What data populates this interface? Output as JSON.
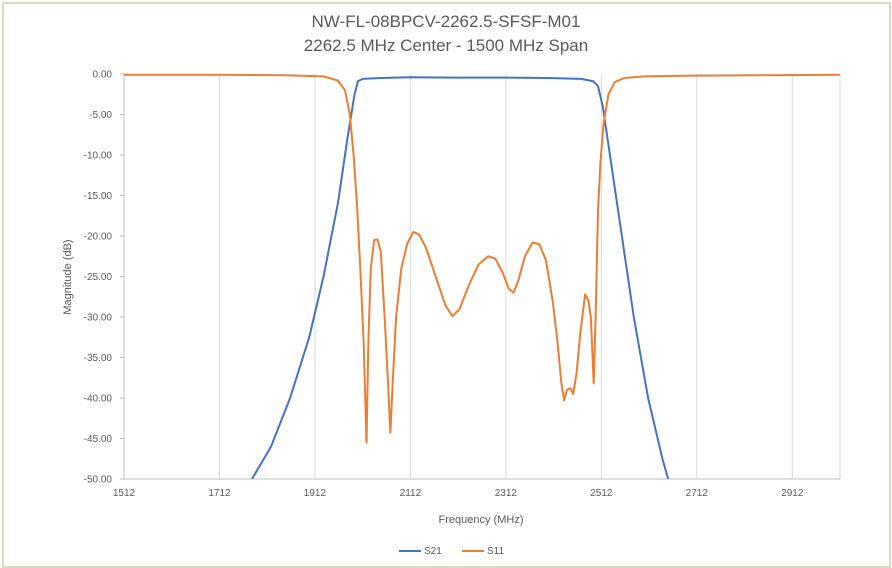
{
  "chart_data": {
    "type": "line",
    "title": "NW-FL-08BPCV-2262.5-SFSF-M01",
    "subtitle": "2262.5 MHz Center - 1500 MHz Span",
    "xlabel": "Frequency (MHz)",
    "ylabel": "Magnitude (dB)",
    "xlim": [
      1512,
      3012
    ],
    "ylim": [
      -50,
      0
    ],
    "x_ticks": [
      "1512",
      "1712",
      "1912",
      "2112",
      "2312",
      "2512",
      "2712",
      "2912"
    ],
    "x_tick_values": [
      1512,
      1712,
      1912,
      2112,
      2312,
      2512,
      2712,
      2912
    ],
    "y_ticks": [
      "0.00",
      "-5.00",
      "-10.00",
      "-15.00",
      "-20.00",
      "-25.00",
      "-30.00",
      "-35.00",
      "-40.00",
      "-45.00",
      "-50.00"
    ],
    "y_tick_values": [
      0,
      -5,
      -10,
      -15,
      -20,
      -25,
      -30,
      -35,
      -40,
      -45,
      -50
    ],
    "grid": "vertical",
    "legend_position": "bottom",
    "series": [
      {
        "name": "S21",
        "color": "#4472c4",
        "points": [
          [
            1780,
            -50
          ],
          [
            1820,
            -46
          ],
          [
            1860,
            -40
          ],
          [
            1900,
            -32.5
          ],
          [
            1930,
            -25
          ],
          [
            1960,
            -16
          ],
          [
            1980,
            -8
          ],
          [
            1995,
            -2.5
          ],
          [
            2002,
            -0.9
          ],
          [
            2012,
            -0.6
          ],
          [
            2050,
            -0.5
          ],
          [
            2112,
            -0.4
          ],
          [
            2200,
            -0.45
          ],
          [
            2312,
            -0.45
          ],
          [
            2400,
            -0.5
          ],
          [
            2470,
            -0.6
          ],
          [
            2495,
            -0.9
          ],
          [
            2505,
            -1.5
          ],
          [
            2515,
            -4
          ],
          [
            2530,
            -10
          ],
          [
            2555,
            -20
          ],
          [
            2580,
            -30
          ],
          [
            2610,
            -40
          ],
          [
            2640,
            -47.5
          ],
          [
            2652,
            -50
          ]
        ]
      },
      {
        "name": "S11",
        "color": "#ed7d31",
        "points": [
          [
            1512,
            -0.1
          ],
          [
            1700,
            -0.1
          ],
          [
            1850,
            -0.15
          ],
          [
            1930,
            -0.3
          ],
          [
            1960,
            -0.8
          ],
          [
            1975,
            -2
          ],
          [
            1985,
            -5
          ],
          [
            1993,
            -10
          ],
          [
            2000,
            -16
          ],
          [
            2007,
            -24
          ],
          [
            2014,
            -33
          ],
          [
            2020,
            -45.5
          ],
          [
            2024,
            -33
          ],
          [
            2029,
            -24
          ],
          [
            2036,
            -20.5
          ],
          [
            2043,
            -20.4
          ],
          [
            2050,
            -22
          ],
          [
            2058,
            -30
          ],
          [
            2065,
            -38
          ],
          [
            2070,
            -44.3
          ],
          [
            2075,
            -38
          ],
          [
            2082,
            -30
          ],
          [
            2093,
            -24
          ],
          [
            2105,
            -21
          ],
          [
            2118,
            -19.5
          ],
          [
            2130,
            -19.8
          ],
          [
            2145,
            -21.5
          ],
          [
            2165,
            -25
          ],
          [
            2185,
            -28.5
          ],
          [
            2200,
            -29.9
          ],
          [
            2215,
            -29
          ],
          [
            2235,
            -26
          ],
          [
            2255,
            -23.5
          ],
          [
            2275,
            -22.5
          ],
          [
            2290,
            -22.8
          ],
          [
            2305,
            -24.5
          ],
          [
            2318,
            -26.5
          ],
          [
            2328,
            -27
          ],
          [
            2338,
            -25.5
          ],
          [
            2352,
            -22.5
          ],
          [
            2368,
            -20.8
          ],
          [
            2382,
            -21
          ],
          [
            2396,
            -23
          ],
          [
            2410,
            -28
          ],
          [
            2420,
            -33
          ],
          [
            2428,
            -38
          ],
          [
            2434,
            -40.3
          ],
          [
            2440,
            -39
          ],
          [
            2447,
            -38.8
          ],
          [
            2453,
            -39.5
          ],
          [
            2460,
            -37
          ],
          [
            2468,
            -32
          ],
          [
            2478,
            -27.2
          ],
          [
            2485,
            -28
          ],
          [
            2490,
            -30
          ],
          [
            2496,
            -38.2
          ],
          [
            2500,
            -30
          ],
          [
            2505,
            -17
          ],
          [
            2510,
            -11
          ],
          [
            2517,
            -6
          ],
          [
            2527,
            -2.5
          ],
          [
            2540,
            -1
          ],
          [
            2560,
            -0.5
          ],
          [
            2600,
            -0.3
          ],
          [
            2700,
            -0.2
          ],
          [
            2850,
            -0.15
          ],
          [
            3012,
            -0.1
          ]
        ]
      }
    ]
  }
}
